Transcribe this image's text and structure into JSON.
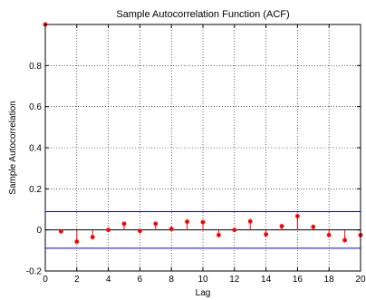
{
  "chart_data": {
    "type": "stem",
    "title": "Sample Autocorrelation Function (ACF)",
    "xlabel": "Lag",
    "ylabel": "Sample Autocorrelation",
    "xlim": [
      0,
      20
    ],
    "ylim": [
      -0.2,
      1.0
    ],
    "xticks": [
      0,
      2,
      4,
      6,
      8,
      10,
      12,
      14,
      16,
      18,
      20
    ],
    "xtick_labels": [
      "0",
      "2",
      "4",
      "6",
      "8",
      "10",
      "12",
      "14",
      "16",
      "18",
      "20"
    ],
    "yticks": [
      -0.2,
      0,
      0.2,
      0.4,
      0.6,
      0.8
    ],
    "ytick_labels": [
      "-0.2",
      "0",
      "0.2",
      "0.4",
      "0.6",
      "0.8"
    ],
    "grid": true,
    "x": [
      0,
      1,
      2,
      3,
      4,
      5,
      6,
      7,
      8,
      9,
      10,
      11,
      12,
      13,
      14,
      15,
      16,
      17,
      18,
      19,
      20
    ],
    "values": [
      1.0,
      -0.007,
      -0.057,
      -0.035,
      0.0,
      0.03,
      -0.005,
      0.03,
      0.005,
      0.04,
      0.038,
      -0.025,
      0.0,
      0.042,
      -0.022,
      0.018,
      0.067,
      0.015,
      -0.025,
      -0.05,
      -0.025
    ],
    "confidence_bounds": [
      0.089,
      -0.089
    ],
    "colors": {
      "stem": "#ff0000",
      "marker": "#ff0000",
      "bounds": "#0000ff",
      "zero_line": "#000000",
      "grid": "#000000",
      "axes": "#000000"
    }
  }
}
